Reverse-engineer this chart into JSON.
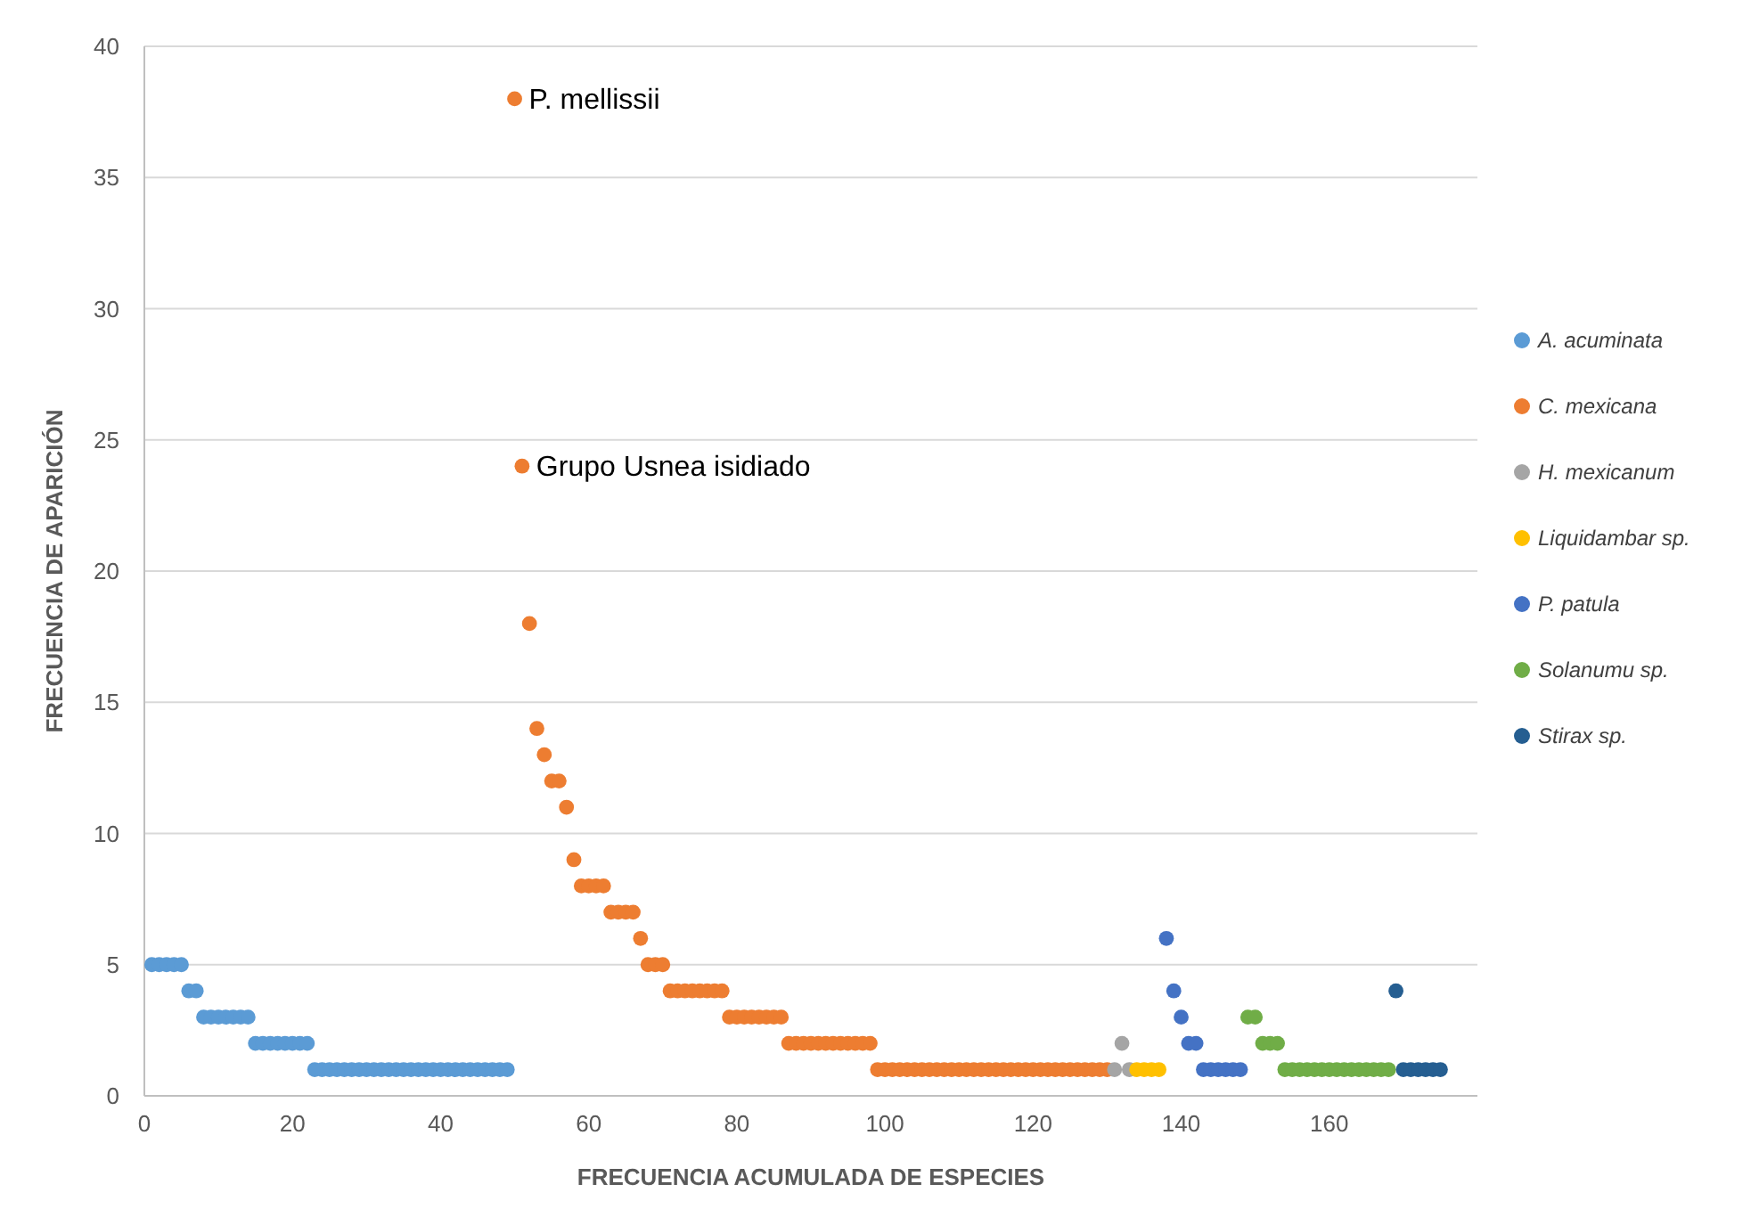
{
  "chart_data": {
    "type": "scatter",
    "xlabel": "FRECUENCIA ACUMULADA DE ESPECIES",
    "ylabel": "FRECUENCIA DE APARICIÓN",
    "xlim": [
      0,
      180
    ],
    "xticks": [
      0,
      20,
      40,
      60,
      80,
      100,
      120,
      140,
      160
    ],
    "ylim": [
      0,
      40
    ],
    "yticks": [
      0,
      5,
      10,
      15,
      20,
      25,
      30,
      35,
      40
    ],
    "grid": "y",
    "legend": "right",
    "marker": "circle",
    "annotations": [
      {
        "text": "P. mellissii",
        "x": 50,
        "y": 38
      },
      {
        "text": "Grupo Usnea isidiado",
        "x": 51,
        "y": 24
      }
    ],
    "series": [
      {
        "name": "A. acuminata",
        "color": "#5b9bd5",
        "x": [
          1,
          2,
          3,
          4,
          5,
          6,
          7,
          8,
          9,
          10,
          11,
          12,
          13,
          14,
          15,
          16,
          17,
          18,
          19,
          20,
          21,
          22,
          23,
          24,
          25,
          26,
          27,
          28,
          29,
          30,
          31,
          32,
          33,
          34,
          35,
          36,
          37,
          38,
          39,
          40,
          41,
          42,
          43,
          44,
          45,
          46,
          47,
          48,
          49
        ],
        "values": [
          5,
          5,
          5,
          5,
          5,
          4,
          4,
          3,
          3,
          3,
          3,
          3,
          3,
          3,
          2,
          2,
          2,
          2,
          2,
          2,
          2,
          2,
          1,
          1,
          1,
          1,
          1,
          1,
          1,
          1,
          1,
          1,
          1,
          1,
          1,
          1,
          1,
          1,
          1,
          1,
          1,
          1,
          1,
          1,
          1,
          1,
          1,
          1,
          1
        ]
      },
      {
        "name": "C. mexicana",
        "color": "#ed7d31",
        "x": [
          50,
          51,
          52,
          53,
          54,
          55,
          56,
          57,
          58,
          59,
          60,
          61,
          62,
          63,
          64,
          65,
          66,
          67,
          68,
          69,
          70,
          71,
          72,
          73,
          74,
          75,
          76,
          77,
          78,
          79,
          80,
          81,
          82,
          83,
          84,
          85,
          86,
          87,
          88,
          89,
          90,
          91,
          92,
          93,
          94,
          95,
          96,
          97,
          98,
          99,
          100,
          101,
          102,
          103,
          104,
          105,
          106,
          107,
          108,
          109,
          110,
          111,
          112,
          113,
          114,
          115,
          116,
          117,
          118,
          119,
          120,
          121,
          122,
          123,
          124,
          125,
          126,
          127,
          128,
          129,
          130
        ],
        "values": [
          38,
          24,
          18,
          14,
          13,
          12,
          12,
          11,
          9,
          8,
          8,
          8,
          8,
          7,
          7,
          7,
          7,
          6,
          5,
          5,
          5,
          4,
          4,
          4,
          4,
          4,
          4,
          4,
          4,
          3,
          3,
          3,
          3,
          3,
          3,
          3,
          3,
          2,
          2,
          2,
          2,
          2,
          2,
          2,
          2,
          2,
          2,
          2,
          2,
          1,
          1,
          1,
          1,
          1,
          1,
          1,
          1,
          1,
          1,
          1,
          1,
          1,
          1,
          1,
          1,
          1,
          1,
          1,
          1,
          1,
          1,
          1,
          1,
          1,
          1,
          1,
          1,
          1,
          1,
          1,
          1
        ]
      },
      {
        "name": "H. mexicanum",
        "color": "#a5a5a5",
        "x": [
          131,
          132,
          133
        ],
        "values": [
          1,
          2,
          1
        ]
      },
      {
        "name": "Liquidambar sp.",
        "color": "#ffc000",
        "x": [
          134,
          135,
          136,
          137
        ],
        "values": [
          1,
          1,
          1,
          1
        ]
      },
      {
        "name": "P. patula",
        "color": "#4472c4",
        "x": [
          138,
          139,
          140,
          141,
          142,
          143,
          144,
          145,
          146,
          147,
          148
        ],
        "values": [
          6,
          4,
          3,
          2,
          2,
          1,
          1,
          1,
          1,
          1,
          1
        ]
      },
      {
        "name": "Solanumu sp.",
        "color": "#70ad47",
        "x": [
          149,
          150,
          151,
          152,
          153,
          154,
          155,
          156,
          157,
          158,
          159,
          160,
          161,
          162,
          163,
          164,
          165,
          166,
          167,
          168
        ],
        "values": [
          3,
          3,
          2,
          2,
          2,
          1,
          1,
          1,
          1,
          1,
          1,
          1,
          1,
          1,
          1,
          1,
          1,
          1,
          1,
          1
        ]
      },
      {
        "name": "Stirax sp.",
        "color": "#255e91",
        "x": [
          169,
          170,
          171,
          172,
          173,
          174,
          175
        ],
        "values": [
          4,
          1,
          1,
          1,
          1,
          1,
          1
        ]
      }
    ]
  }
}
